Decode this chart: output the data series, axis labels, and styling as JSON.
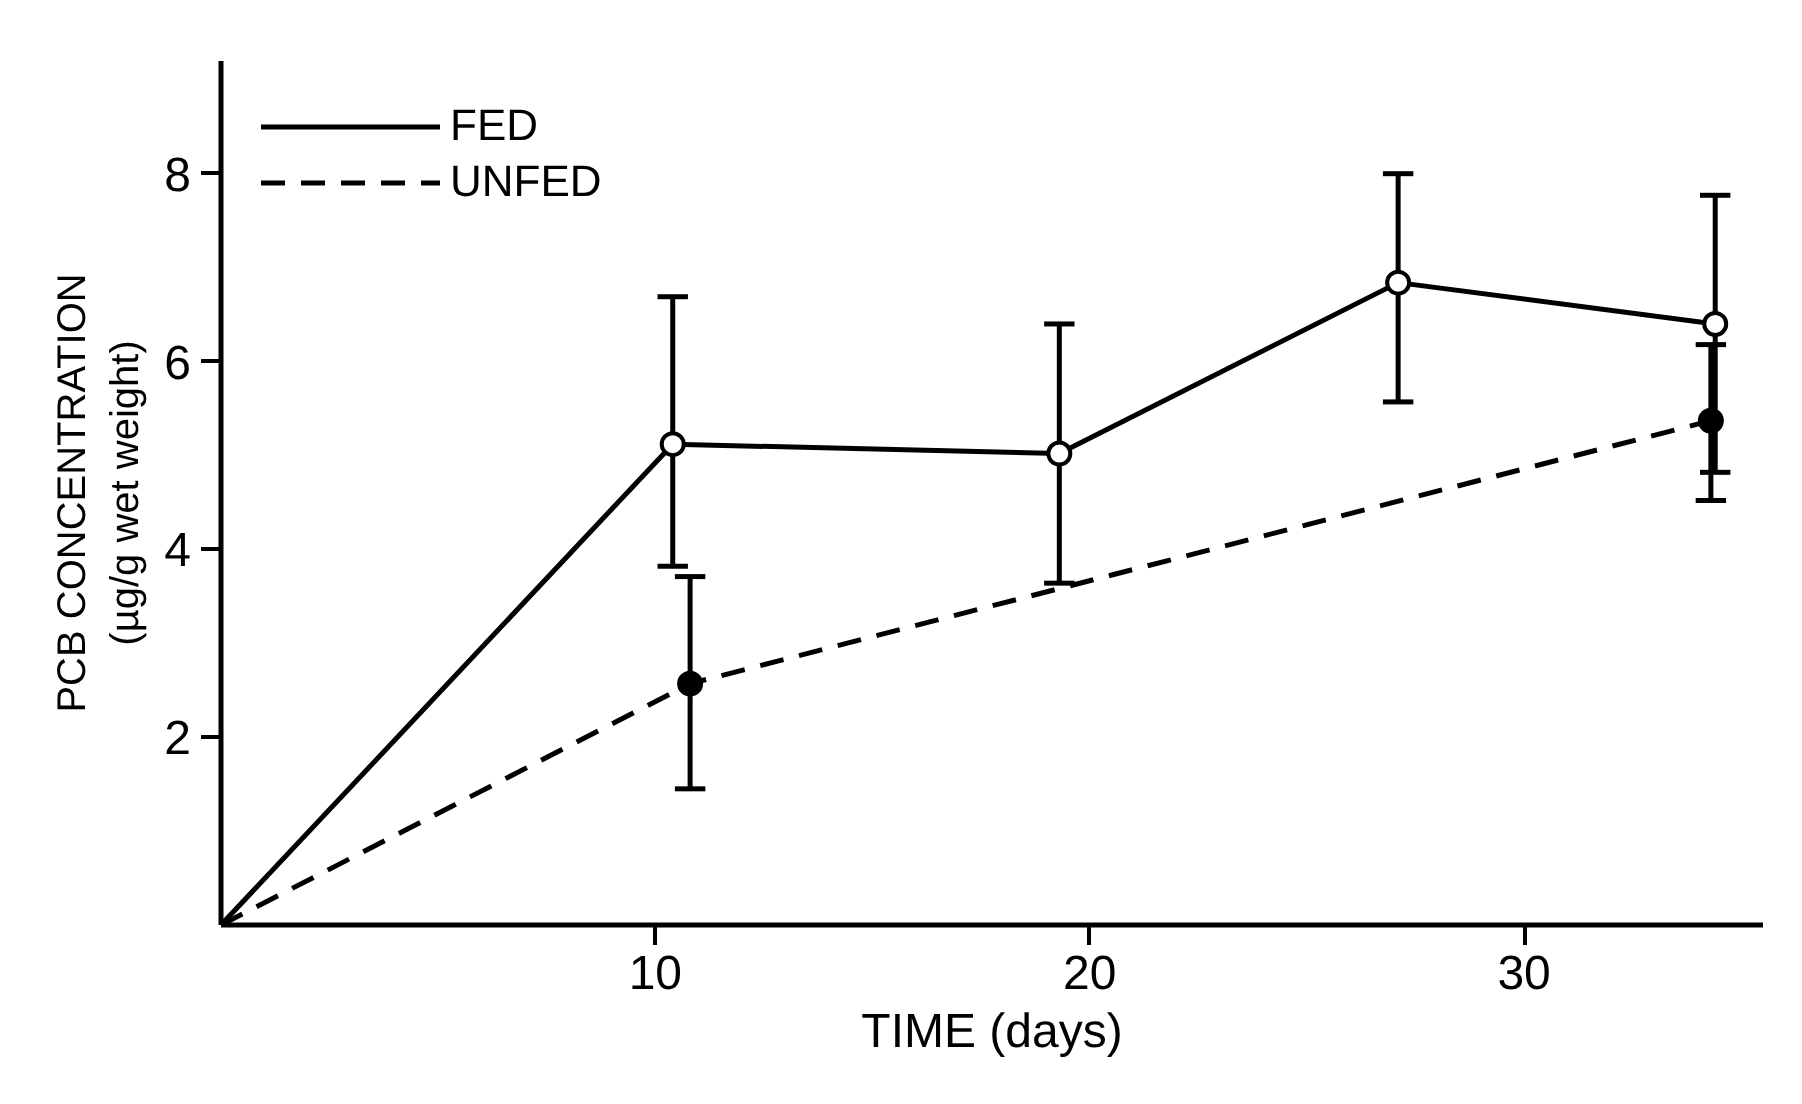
{
  "chart_data": {
    "type": "line",
    "xlabel": "TIME (days)",
    "ylabel": "PCB CONCENTRATION\n(µg/g wet weight)",
    "xlim": [
      0,
      35.5
    ],
    "xticks": [
      10,
      20,
      30
    ],
    "ylim": [
      0,
      9.2
    ],
    "yticks": [
      2,
      4,
      6,
      8
    ],
    "grid": false,
    "legend": "top left",
    "series": [
      {
        "name": "FED",
        "color": "#000000",
        "line_style": "solid",
        "marker": "circle_open",
        "x": [
          0,
          10.4,
          19.3,
          27.1,
          34.4
        ],
        "values": [
          0,
          5.12,
          5.02,
          6.84,
          6.4
        ],
        "errors": [
          null,
          [
            3.82,
            6.69
          ],
          [
            3.64,
            6.4
          ],
          [
            5.57,
            8.0
          ],
          [
            4.82,
            7.77
          ]
        ]
      },
      {
        "name": "UNFED",
        "color": "#000000",
        "line_style": "dashed",
        "marker": "circle",
        "x": [
          0,
          10.8,
          34.3
        ],
        "values": [
          0,
          2.57,
          5.37
        ],
        "errors": [
          null,
          [
            1.45,
            3.71
          ],
          [
            4.52,
            6.18
          ]
        ]
      }
    ]
  }
}
